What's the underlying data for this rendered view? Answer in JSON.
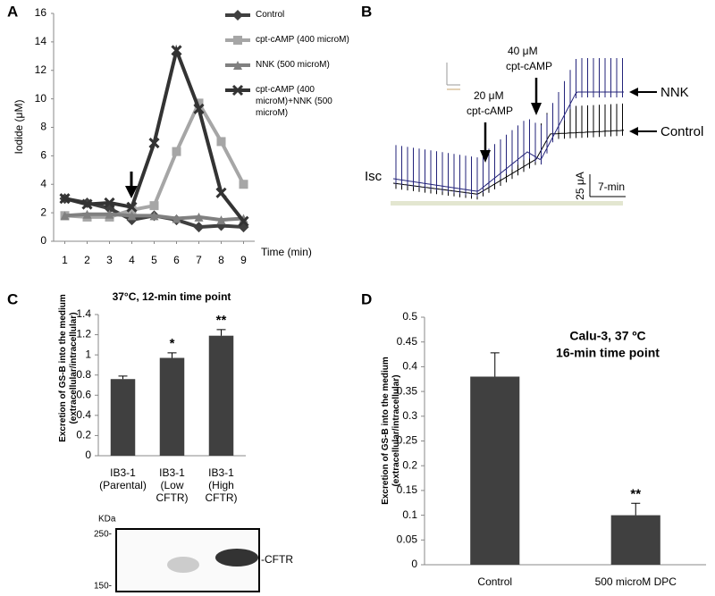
{
  "chart_data": [
    {
      "type": "line",
      "panel_label": "A",
      "y_label": "Iodide (μM)",
      "x_label": "Time (min)",
      "x": [
        1,
        2,
        3,
        4,
        5,
        6,
        7,
        8,
        9
      ],
      "xlim": [
        0.5,
        9.5
      ],
      "xticks": [
        1,
        2,
        3,
        4,
        5,
        6,
        7,
        8,
        9
      ],
      "ylim": [
        0,
        16
      ],
      "yticks": [
        0,
        2,
        4,
        6,
        8,
        10,
        12,
        14,
        16
      ],
      "series": [
        {
          "name": "Control",
          "color": "#404040",
          "marker": "diamond",
          "values": [
            3.0,
            2.7,
            2.3,
            1.5,
            1.8,
            1.5,
            1.0,
            1.1,
            1.0
          ]
        },
        {
          "name": "cpt-cAMP (400 microM)",
          "color": "#a6a6a6",
          "marker": "square",
          "values": [
            1.8,
            1.7,
            1.7,
            2.2,
            2.5,
            6.3,
            9.7,
            7.0,
            4.0
          ]
        },
        {
          "name": "NNK (500 microM)",
          "color": "#808080",
          "marker": "triangle",
          "values": [
            1.8,
            1.9,
            1.9,
            1.8,
            1.8,
            1.6,
            1.7,
            1.5,
            1.6
          ]
        },
        {
          "name": "cpt-cAMP (400 microM)+NNK (500 microM)",
          "color": "#333333",
          "marker": "x",
          "values": [
            3.0,
            2.6,
            2.7,
            2.4,
            6.9,
            13.4,
            9.3,
            3.4,
            1.4
          ]
        }
      ]
    },
    {
      "type": "bar",
      "panel_label": "C",
      "title": "37°C, 12-min time point",
      "y_label": "Excretion of GS-B into the medium (extracellular/intracellular)",
      "categories": [
        "IB3-1 (Parental)",
        "IB3-1 (Low CFTR)",
        "IB3-1 (High CFTR)"
      ],
      "values": [
        0.76,
        0.97,
        1.19
      ],
      "errors": [
        0.03,
        0.05,
        0.06
      ],
      "significance": [
        null,
        "*",
        "**"
      ],
      "color": "#404040",
      "ylim": [
        0,
        1.4
      ],
      "yticks": [
        0,
        0.2,
        0.4,
        0.6,
        0.8,
        1,
        1.2,
        1.4
      ]
    },
    {
      "type": "bar",
      "panel_label": "D",
      "title": "Calu-3, 37 ºC",
      "subtitle": "16-min time point",
      "y_label": "Excretion of GS-B into the medium (extracellular/intracellular)",
      "categories": [
        "Control",
        "500 microM DPC"
      ],
      "values": [
        0.38,
        0.1
      ],
      "errors": [
        0.048,
        0.024
      ],
      "significance": [
        null,
        "**"
      ],
      "color": "#404040",
      "ylim": [
        0,
        0.5
      ],
      "yticks": [
        0,
        0.05,
        0.1,
        0.15,
        0.2,
        0.25,
        0.3,
        0.35,
        0.4,
        0.45,
        0.5
      ]
    }
  ],
  "panel_b": {
    "panel_label": "B",
    "high_dose": [
      "40 μM",
      "cpt-cAMP"
    ],
    "low_dose": [
      "20 μM",
      "cpt-cAMP"
    ],
    "trace_nnk": "NNK",
    "trace_control": "Control",
    "current": "Isc",
    "scale_current": "25 μA",
    "scale_time": "7-min"
  },
  "blot": {
    "unit": "KDa",
    "marker_high": "250-",
    "marker_low": "150-",
    "band": "-CFTR"
  }
}
